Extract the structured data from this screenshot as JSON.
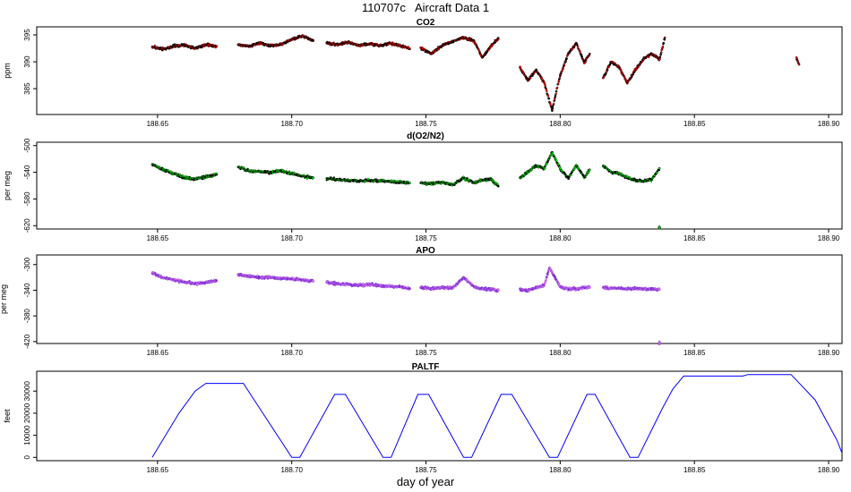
{
  "page": {
    "title": "110707c   Aircraft Data 1",
    "xlabel": "day of year"
  },
  "chart_data": [
    {
      "type": "scatter",
      "title": "CO2",
      "ylabel": "ppm",
      "xlim": [
        188.605,
        188.905
      ],
      "ylim": [
        380.2,
        396.5
      ],
      "xticks": [
        188.65,
        188.7,
        188.75,
        188.8,
        188.85,
        188.9
      ],
      "xtick_labels": [
        "188.65",
        "188.70",
        "188.75",
        "188.80",
        "188.85",
        "188.90"
      ],
      "yticks": [
        395,
        390,
        385
      ],
      "ytick_labels": [
        "395",
        "390",
        "385"
      ],
      "color": "#ff0000",
      "edge_color": "#000000",
      "series": [
        {
          "x": [
            188.648,
            188.652,
            188.656,
            188.66,
            188.664,
            188.668,
            188.672
          ],
          "y": [
            392.8,
            392.3,
            392.9,
            393.1,
            392.5,
            393.2,
            392.9
          ]
        },
        {
          "x": [
            188.68,
            188.684,
            188.688,
            188.692,
            188.696,
            188.7,
            188.704,
            188.708
          ],
          "y": [
            393.2,
            392.9,
            393.5,
            393.0,
            393.2,
            394.2,
            394.8,
            393.9
          ]
        },
        {
          "x": [
            188.713,
            188.717,
            188.721,
            188.725,
            188.729,
            188.733,
            188.737,
            188.741,
            188.744
          ],
          "y": [
            393.5,
            393.2,
            393.6,
            393.1,
            393.3,
            393.0,
            393.4,
            392.9,
            392.4
          ]
        },
        {
          "x": [
            188.748,
            188.752,
            188.756,
            188.76,
            188.764,
            188.768,
            188.771,
            188.774,
            188.777
          ],
          "y": [
            392.6,
            391.5,
            393.0,
            393.8,
            394.5,
            393.8,
            390.8,
            392.8,
            394.4
          ]
        },
        {
          "x": [
            188.785,
            188.788,
            188.791,
            188.794,
            188.797,
            188.8,
            188.803,
            188.806,
            188.809,
            188.811
          ],
          "y": [
            389.0,
            386.5,
            388.5,
            386.2,
            381.0,
            387.5,
            391.5,
            393.5,
            389.8,
            391.5
          ]
        },
        {
          "x": [
            188.816,
            188.819,
            188.822,
            188.825,
            188.828,
            188.831,
            188.834,
            188.837,
            188.839
          ],
          "y": [
            387.0,
            390.0,
            389.0,
            386.0,
            388.5,
            390.5,
            391.5,
            390.5,
            394.5
          ]
        },
        {
          "x": [
            188.888,
            188.889
          ],
          "y": [
            390.8,
            389.5
          ]
        }
      ]
    },
    {
      "type": "scatter",
      "title": "d(O2/N2)",
      "ylabel": "per meg",
      "xlim": [
        188.605,
        188.905
      ],
      "ylim": [
        -625,
        -495
      ],
      "xticks": [
        188.65,
        188.7,
        188.75,
        188.8,
        188.85,
        188.9
      ],
      "xtick_labels": [
        "188.65",
        "188.70",
        "188.75",
        "188.80",
        "188.85",
        "188.90"
      ],
      "yticks": [
        -500,
        -540,
        -580,
        -620
      ],
      "ytick_labels": [
        "-500",
        "-540",
        "-580",
        "-620"
      ],
      "color": "#00ff00",
      "edge_color": "#000000",
      "series": [
        {
          "x": [
            188.648,
            188.652,
            188.656,
            188.66,
            188.664,
            188.668,
            188.672
          ],
          "y": [
            -528,
            -536,
            -542,
            -548,
            -550,
            -547,
            -543
          ]
        },
        {
          "x": [
            188.68,
            188.684,
            188.688,
            188.692,
            188.696,
            188.7,
            188.704,
            188.708
          ],
          "y": [
            -532,
            -538,
            -539,
            -540,
            -538,
            -542,
            -546,
            -548
          ]
        },
        {
          "x": [
            188.713,
            188.717,
            188.721,
            188.725,
            188.729,
            188.733,
            188.737,
            188.741,
            188.744
          ],
          "y": [
            -549,
            -551,
            -552,
            -553,
            -552,
            -553,
            -554,
            -555,
            -556
          ]
        },
        {
          "x": [
            188.748,
            188.752,
            188.756,
            188.76,
            188.764,
            188.768,
            188.771,
            188.774,
            188.777
          ],
          "y": [
            -556,
            -557,
            -555,
            -559,
            -548,
            -556,
            -552,
            -550,
            -561
          ]
        },
        {
          "x": [
            188.785,
            188.788,
            188.791,
            188.794,
            188.797,
            188.8,
            188.803,
            188.806,
            188.809,
            188.811
          ],
          "y": [
            -548,
            -540,
            -530,
            -535,
            -510,
            -535,
            -549,
            -530,
            -548,
            -536
          ]
        },
        {
          "x": [
            188.816,
            188.819,
            188.822,
            188.825,
            188.828,
            188.831,
            188.834,
            188.837
          ],
          "y": [
            -530,
            -540,
            -542,
            -548,
            -552,
            -554,
            -551,
            -534
          ]
        },
        {
          "x": [
            188.837
          ],
          "y": [
            -623
          ]
        }
      ]
    },
    {
      "type": "scatter",
      "title": "APO",
      "ylabel": "per meg",
      "xlim": [
        188.605,
        188.905
      ],
      "ylim": [
        -423,
        -285
      ],
      "xticks": [
        188.65,
        188.7,
        188.75,
        188.8,
        188.85,
        188.9
      ],
      "xtick_labels": [
        "188.65",
        "188.70",
        "188.75",
        "188.80",
        "188.85",
        "188.90"
      ],
      "yticks": [
        -300,
        -340,
        -380,
        -420
      ],
      "ytick_labels": [
        "-300",
        "-340",
        "-380",
        "-420"
      ],
      "color": "#ee82ee",
      "edge_color": "#7b2fd6",
      "series": [
        {
          "x": [
            188.648,
            188.652,
            188.656,
            188.66,
            188.664,
            188.668,
            188.672
          ],
          "y": [
            -314,
            -320,
            -324,
            -327,
            -330,
            -328,
            -325
          ]
        },
        {
          "x": [
            188.68,
            188.684,
            188.688,
            188.692,
            188.696,
            188.7,
            188.704,
            188.708
          ],
          "y": [
            -316,
            -318,
            -320,
            -320,
            -322,
            -322,
            -324,
            -326
          ]
        },
        {
          "x": [
            188.713,
            188.717,
            188.721,
            188.725,
            188.729,
            188.733,
            188.737,
            188.741,
            188.744
          ],
          "y": [
            -328,
            -330,
            -331,
            -332,
            -331,
            -333,
            -334,
            -335,
            -338
          ]
        },
        {
          "x": [
            188.748,
            188.752,
            188.756,
            188.76,
            188.764,
            188.768,
            188.771,
            188.774,
            188.777
          ],
          "y": [
            -336,
            -337,
            -336,
            -336,
            -320,
            -335,
            -338,
            -339,
            -340
          ]
        },
        {
          "x": [
            188.785,
            188.788,
            188.791,
            188.794,
            188.796,
            188.8,
            188.803,
            188.806,
            188.809,
            188.811
          ],
          "y": [
            -338,
            -340,
            -336,
            -333,
            -305,
            -335,
            -338,
            -338,
            -336,
            -336
          ]
        },
        {
          "x": [
            188.816,
            188.819,
            188.822,
            188.825,
            188.828,
            188.831,
            188.834,
            188.837
          ],
          "y": [
            -336,
            -337,
            -337,
            -338,
            -337,
            -338,
            -338,
            -339
          ]
        },
        {
          "x": [
            188.837
          ],
          "y": [
            -422
          ]
        }
      ]
    },
    {
      "type": "line",
      "title": "PALTF",
      "ylabel": "feet",
      "xlim": [
        188.605,
        188.905
      ],
      "ylim": [
        -1500,
        39000
      ],
      "xticks": [
        188.65,
        188.7,
        188.75,
        188.8,
        188.85,
        188.9
      ],
      "xtick_labels": [
        "188.65",
        "188.70",
        "188.75",
        "188.80",
        "188.85",
        "188.90"
      ],
      "yticks": [
        0,
        10000,
        20000,
        30000
      ],
      "ytick_labels": [
        "0",
        "10000",
        "20000",
        "30000"
      ],
      "color": "#0000ff",
      "series": [
        {
          "x": [
            188.648,
            188.658,
            188.664,
            188.668,
            188.682,
            188.7,
            188.703,
            188.716,
            188.72,
            188.734,
            188.737,
            188.747,
            188.751,
            188.764,
            188.767,
            188.778,
            188.782,
            188.796,
            188.799,
            188.81,
            188.813,
            188.826,
            188.829,
            188.838,
            188.842,
            188.846,
            188.868,
            188.87,
            188.886,
            188.895,
            188.903,
            188.905
          ],
          "y": [
            0,
            20000,
            30000,
            33500,
            33500,
            0,
            0,
            28500,
            28500,
            0,
            0,
            28500,
            28500,
            0,
            0,
            28500,
            28500,
            0,
            0,
            28500,
            28500,
            0,
            0,
            22000,
            31000,
            36800,
            36800,
            37500,
            37500,
            26000,
            8000,
            2000
          ]
        }
      ]
    }
  ]
}
